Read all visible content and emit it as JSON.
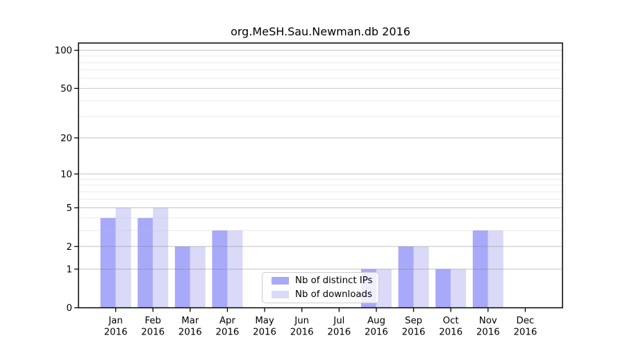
{
  "chart_data": {
    "type": "bar",
    "title": "org.MeSH.Sau.Newman.db 2016",
    "categories": [
      "Jan",
      "Feb",
      "Mar",
      "Apr",
      "May",
      "Jun",
      "Jul",
      "Aug",
      "Sep",
      "Oct",
      "Nov",
      "Dec"
    ],
    "year_label": "2016",
    "series": [
      {
        "name": "Nb of distinct IPs",
        "color": "#a9a9fa",
        "values": [
          4,
          4,
          2,
          3,
          0,
          0,
          0,
          1,
          2,
          1,
          3,
          0
        ]
      },
      {
        "name": "Nb of downloads",
        "color": "#dadaf8",
        "values": [
          5,
          5,
          2,
          3,
          0,
          0,
          0,
          1,
          2,
          1,
          3,
          0
        ]
      }
    ],
    "xlabel": "",
    "ylabel": "",
    "yscale": "log1p",
    "ylim": [
      0,
      114
    ],
    "yticks": [
      0,
      1,
      2,
      5,
      10,
      20,
      50,
      100
    ],
    "yticks_minor": [
      3,
      4,
      6,
      7,
      8,
      9,
      30,
      40,
      60,
      70,
      80,
      90
    ],
    "grid": "horizontal",
    "legend_position": "lower-center-inside",
    "colors": {
      "major_grid": "#cccccc",
      "minor_grid": "#ececec",
      "spine": "#000000",
      "tick_label": "#000000"
    }
  }
}
